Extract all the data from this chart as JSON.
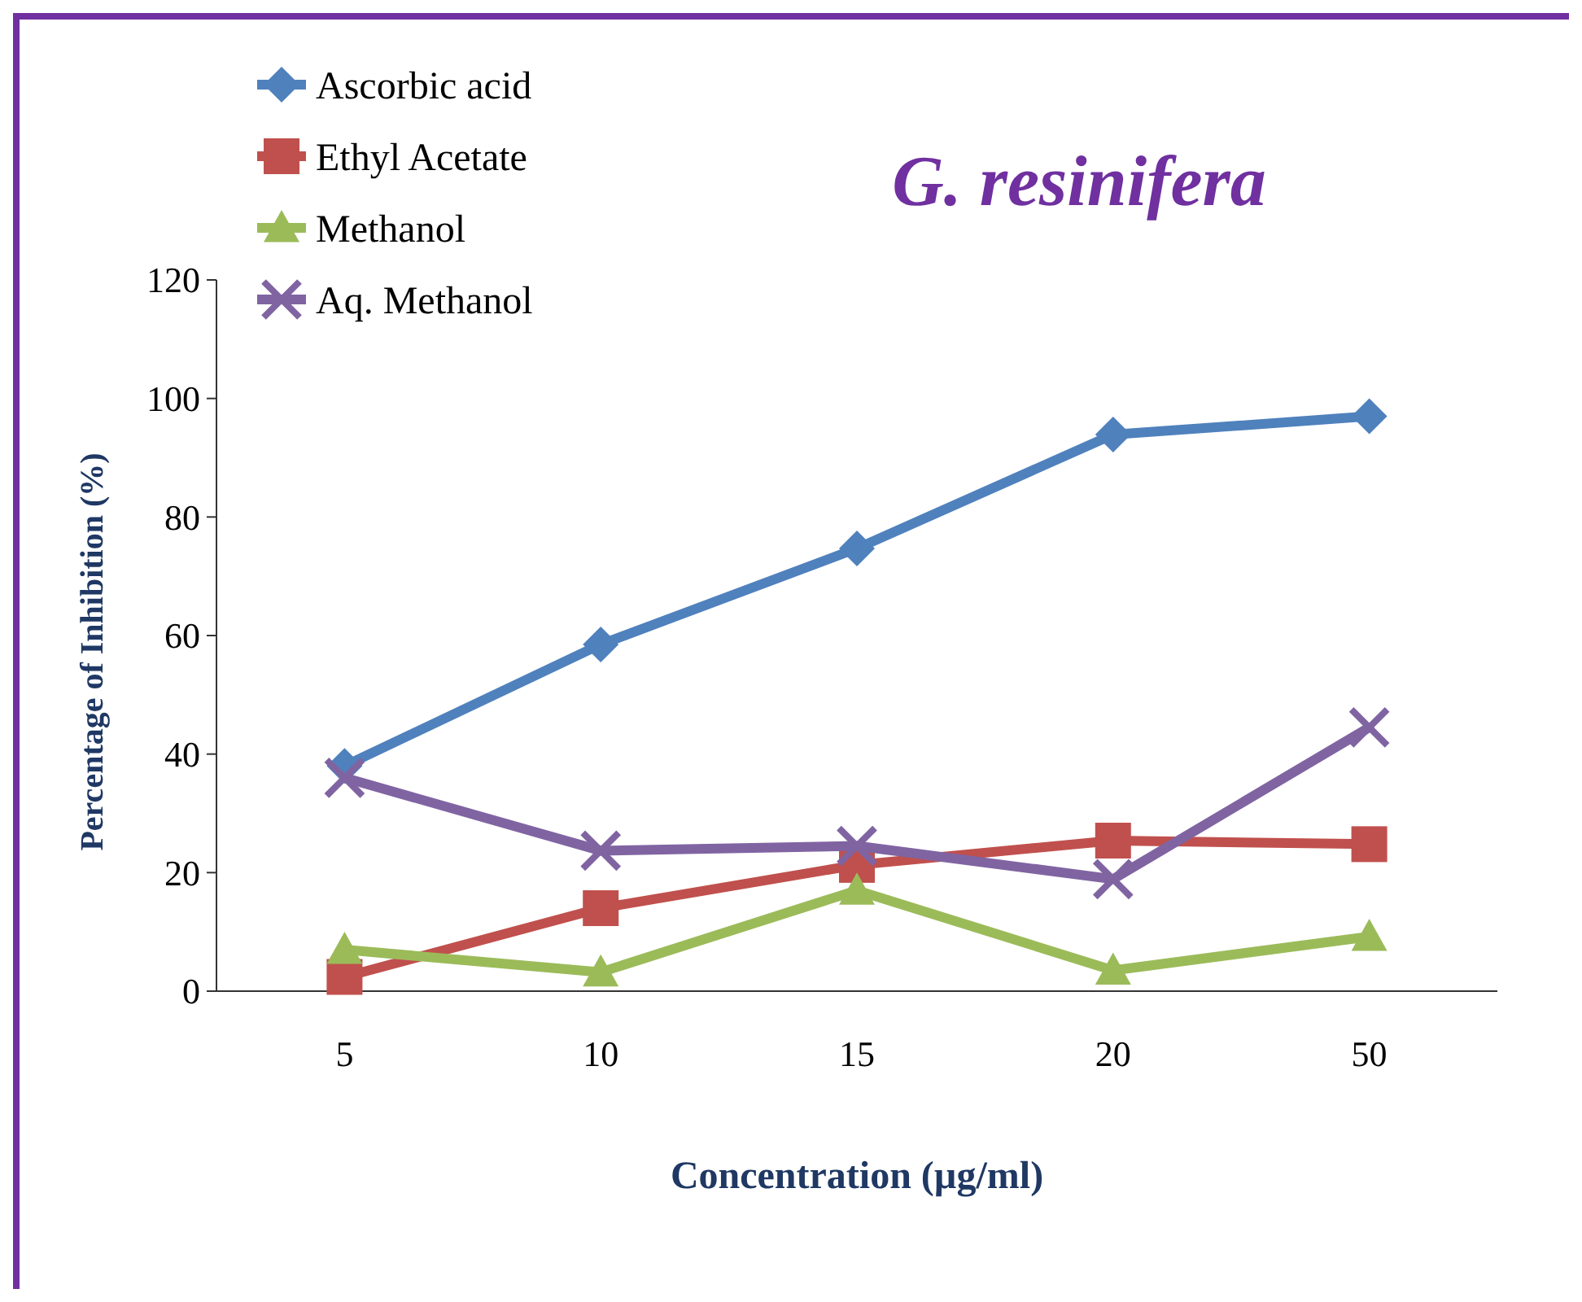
{
  "chart_data": {
    "type": "line",
    "title": "G. resinifera",
    "xlabel": "Concentration (µg/ml)",
    "ylabel": "Percentage of Inhibition (%)",
    "categories": [
      "5",
      "10",
      "15",
      "20",
      "50"
    ],
    "series": [
      {
        "name": "Ascorbic acid",
        "color": "#4f81bd",
        "marker": "diamond",
        "values": [
          38,
          58.5,
          74.7,
          93.9,
          97
        ]
      },
      {
        "name": "Ethyl Acetate",
        "color": "#c0504d",
        "marker": "square",
        "values": [
          2.4,
          14,
          21.3,
          25.4,
          24.8
        ]
      },
      {
        "name": "Methanol",
        "color": "#9bbb59",
        "marker": "triangle",
        "values": [
          7,
          3.2,
          17,
          3.5,
          9.2
        ]
      },
      {
        "name": "Aq. Methanol",
        "color": "#8064a2",
        "marker": "cross",
        "values": [
          36,
          23.7,
          24.5,
          18.9,
          44.5
        ]
      }
    ],
    "ylim": [
      0,
      120
    ],
    "yticks": [
      0,
      20,
      40,
      60,
      80,
      100,
      120
    ],
    "grid": false,
    "legend": "top left",
    "line_style": "solid"
  }
}
